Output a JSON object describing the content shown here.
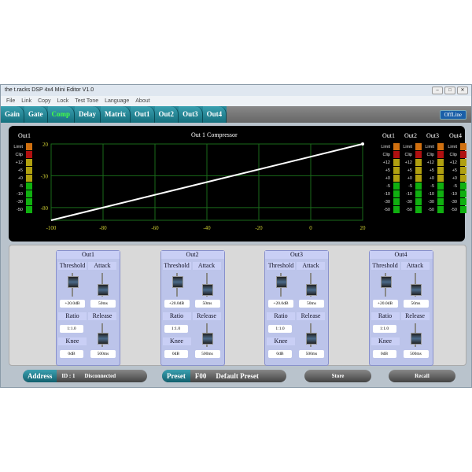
{
  "window": {
    "title": "the t.racks DSP 4x4 Mini Editor V1.0",
    "controls": [
      "–",
      "□",
      "✕"
    ]
  },
  "menu": [
    "File",
    "Link",
    "Copy",
    "Lock",
    "Test Tone",
    "Language",
    "About"
  ],
  "tabs": [
    {
      "label": "Gain"
    },
    {
      "label": "Gate"
    },
    {
      "label": "Comp",
      "active": true
    },
    {
      "label": "Delay"
    },
    {
      "label": "Matrix"
    },
    {
      "label": "Out1"
    },
    {
      "label": "Out2"
    },
    {
      "label": "Out3"
    },
    {
      "label": "Out4"
    }
  ],
  "status_button": "OffLine",
  "graph": {
    "left_meter_label": "Out1",
    "title": "Out 1  Compressor",
    "right_meter_labels": [
      "Out1",
      "Out2",
      "Out3",
      "Out4"
    ],
    "meter_scale": [
      "Limit",
      "Clip",
      "+12",
      "+5",
      "+0",
      "-5",
      "-10",
      "-30",
      "-50"
    ],
    "meter_colors": [
      "#d07010",
      "#b01010",
      "#b0a010",
      "#b0a010",
      "#b0a010",
      "#10b010",
      "#10b010",
      "#10b010",
      "#10b010"
    ]
  },
  "chart_data": {
    "type": "line",
    "x_ticks": [
      -100,
      -80,
      -60,
      -40,
      -20,
      0,
      20
    ],
    "y_ticks": [
      20,
      -30,
      -80
    ],
    "xlim": [
      -100,
      20
    ],
    "ylim": [
      -100,
      20
    ],
    "grid": true,
    "series": [
      {
        "x": [
          -100,
          20
        ],
        "y": [
          -100,
          20
        ],
        "color": "#ffffff"
      }
    ]
  },
  "channels": [
    {
      "name": "Out1",
      "threshold": "+20.0dB",
      "attack": "50ms",
      "ratio": "1:1.0",
      "knee": "0dB",
      "release": "500ms"
    },
    {
      "name": "Out2",
      "threshold": "+20.0dB",
      "attack": "50ms",
      "ratio": "1:1.0",
      "knee": "0dB",
      "release": "500ms"
    },
    {
      "name": "Out3",
      "threshold": "+20.0dB",
      "attack": "50ms",
      "ratio": "1:1.0",
      "knee": "0dB",
      "release": "500ms"
    },
    {
      "name": "Out4",
      "threshold": "+20.0dB",
      "attack": "50ms",
      "ratio": "1:1.0",
      "knee": "0dB",
      "release": "500ms"
    }
  ],
  "labels": {
    "threshold": "Threshold",
    "attack": "Attack",
    "ratio": "Ratio",
    "release": "Release",
    "knee": "Knee"
  },
  "bottom": {
    "address": "Address",
    "id": "ID : 1",
    "connection": "Disconnected",
    "preset": "Preset",
    "preset_no": "F00",
    "preset_name": "Default Preset",
    "store": "Store",
    "recall": "Recall"
  }
}
